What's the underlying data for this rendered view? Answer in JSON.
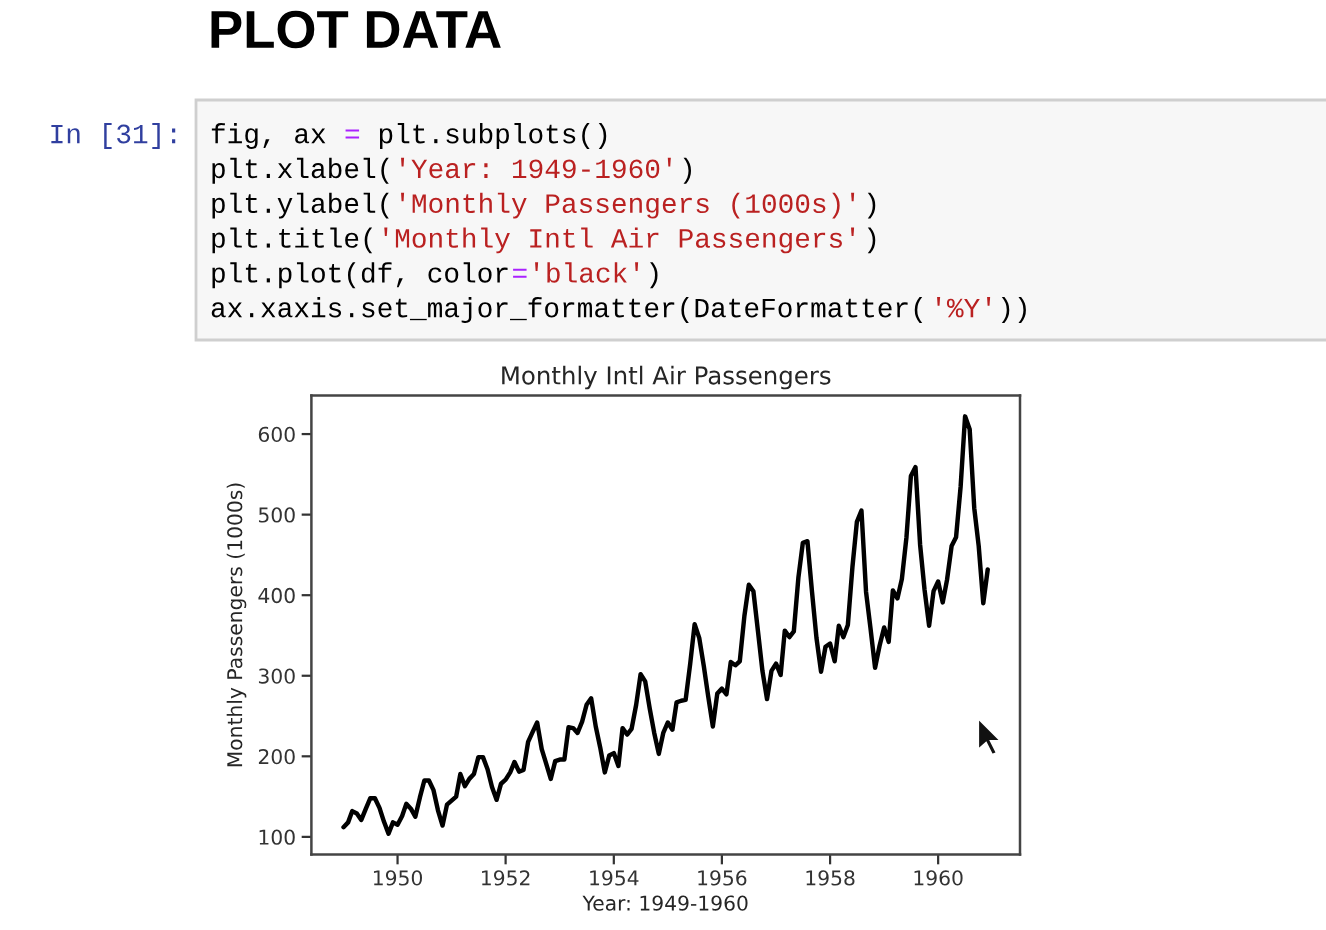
{
  "chart_data": {
    "type": "line",
    "title": "Monthly Intl Air Passengers",
    "xlabel": "Year: 1949-1960",
    "ylabel": "Monthly Passengers (1000s)",
    "x": [
      "1949-01",
      "1949-02",
      "1949-03",
      "1949-04",
      "1949-05",
      "1949-06",
      "1949-07",
      "1949-08",
      "1949-09",
      "1949-10",
      "1949-11",
      "1949-12",
      "1950-01",
      "1950-02",
      "1950-03",
      "1950-04",
      "1950-05",
      "1950-06",
      "1950-07",
      "1950-08",
      "1950-09",
      "1950-10",
      "1950-11",
      "1950-12",
      "1951-01",
      "1951-02",
      "1951-03",
      "1951-04",
      "1951-05",
      "1951-06",
      "1951-07",
      "1951-08",
      "1951-09",
      "1951-10",
      "1951-11",
      "1951-12",
      "1952-01",
      "1952-02",
      "1952-03",
      "1952-04",
      "1952-05",
      "1952-06",
      "1952-07",
      "1952-08",
      "1952-09",
      "1952-10",
      "1952-11",
      "1952-12",
      "1953-01",
      "1953-02",
      "1953-03",
      "1953-04",
      "1953-05",
      "1953-06",
      "1953-07",
      "1953-08",
      "1953-09",
      "1953-10",
      "1953-11",
      "1953-12",
      "1954-01",
      "1954-02",
      "1954-03",
      "1954-04",
      "1954-05",
      "1954-06",
      "1954-07",
      "1954-08",
      "1954-09",
      "1954-10",
      "1954-11",
      "1954-12",
      "1955-01",
      "1955-02",
      "1955-03",
      "1955-04",
      "1955-05",
      "1955-06",
      "1955-07",
      "1955-08",
      "1955-09",
      "1955-10",
      "1955-11",
      "1955-12",
      "1956-01",
      "1956-02",
      "1956-03",
      "1956-04",
      "1956-05",
      "1956-06",
      "1956-07",
      "1956-08",
      "1956-09",
      "1956-10",
      "1956-11",
      "1956-12",
      "1957-01",
      "1957-02",
      "1957-03",
      "1957-04",
      "1957-05",
      "1957-06",
      "1957-07",
      "1957-08",
      "1957-09",
      "1957-10",
      "1957-11",
      "1957-12",
      "1958-01",
      "1958-02",
      "1958-03",
      "1958-04",
      "1958-05",
      "1958-06",
      "1958-07",
      "1958-08",
      "1958-09",
      "1958-10",
      "1958-11",
      "1958-12",
      "1959-01",
      "1959-02",
      "1959-03",
      "1959-04",
      "1959-05",
      "1959-06",
      "1959-07",
      "1959-08",
      "1959-09",
      "1959-10",
      "1959-11",
      "1959-12",
      "1960-01",
      "1960-02",
      "1960-03",
      "1960-04",
      "1960-05",
      "1960-06",
      "1960-07",
      "1960-08",
      "1960-09",
      "1960-10",
      "1960-11",
      "1960-12"
    ],
    "series": [
      {
        "color": "#000000",
        "values": [
          112,
          118,
          132,
          129,
          121,
          135,
          148,
          148,
          136,
          119,
          104,
          118,
          115,
          126,
          141,
          135,
          125,
          149,
          170,
          170,
          158,
          133,
          114,
          140,
          145,
          150,
          178,
          163,
          172,
          178,
          199,
          199,
          184,
          162,
          146,
          166,
          171,
          180,
          193,
          181,
          183,
          218,
          230,
          242,
          209,
          191,
          172,
          194,
          196,
          196,
          236,
          235,
          229,
          243,
          264,
          272,
          237,
          211,
          180,
          201,
          204,
          188,
          235,
          227,
          234,
          264,
          302,
          293,
          259,
          229,
          203,
          229,
          242,
          233,
          267,
          269,
          270,
          315,
          364,
          347,
          312,
          274,
          237,
          278,
          284,
          277,
          317,
          313,
          318,
          374,
          413,
          405,
          355,
          306,
          271,
          306,
          315,
          301,
          356,
          348,
          355,
          422,
          465,
          467,
          404,
          347,
          305,
          336,
          340,
          318,
          362,
          348,
          363,
          435,
          491,
          505,
          404,
          359,
          310,
          337,
          360,
          342,
          406,
          396,
          420,
          472,
          548,
          559,
          463,
          407,
          362,
          405,
          417,
          391,
          419,
          461,
          472,
          535,
          622,
          606,
          508,
          461,
          390,
          432
        ]
      }
    ],
    "xlim": [
      "1948-05-29",
      "1961-07-07"
    ],
    "xticks": [
      "1950",
      "1952",
      "1954",
      "1956",
      "1958",
      "1960"
    ],
    "ylim": [
      78,
      648
    ],
    "yticks": [
      100,
      200,
      300,
      400,
      500,
      600
    ],
    "line_style": "solid",
    "annotations": [
      "PLOT DATA",
      "In [31]:",
      "fig, ax = plt.subplots()",
      "plt.xlabel('Year: 1949-1960')",
      "plt.ylabel('Monthly Passengers (1000s)')",
      "plt.title('Monthly Intl Air Passengers')",
      "plt.plot(df, color='black')",
      "ax.xaxis.set_major_formatter(DateFormatter('%Y'))"
    ]
  }
}
